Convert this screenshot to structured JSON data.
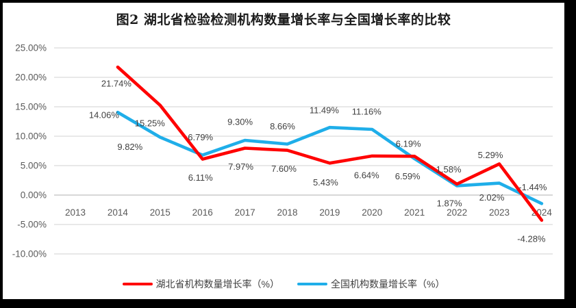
{
  "chart_data": {
    "type": "line",
    "title": "图2  湖北省检验检测机构数量增长率与全国增长率的比较",
    "categories": [
      "2013",
      "2014",
      "2015",
      "2016",
      "2017",
      "2018",
      "2019",
      "2020",
      "2021",
      "2022",
      "2023",
      "2024"
    ],
    "series": [
      {
        "name": "湖北省机构数量增长率（%）",
        "color": "#FF0000",
        "values": [
          null,
          21.74,
          15.25,
          6.11,
          7.97,
          7.6,
          5.43,
          6.64,
          6.59,
          1.87,
          5.29,
          -4.28
        ],
        "labels": [
          "",
          "21.74%",
          "15.25%",
          "6.11%",
          "7.97%",
          "7.60%",
          "5.43%",
          "6.64%",
          "6.59%",
          "1.87%",
          "5.29%",
          "-4.28%"
        ],
        "label_offsets": [
          null,
          [
            -2,
            24
          ],
          [
            -15,
            26
          ],
          [
            -3,
            27
          ],
          [
            -6,
            27
          ],
          [
            -5,
            27
          ],
          [
            -6,
            28
          ],
          [
            -8,
            28
          ],
          [
            -10,
            29
          ],
          [
            -11,
            28
          ],
          [
            -13,
            -13
          ],
          [
            -15,
            27
          ]
        ]
      },
      {
        "name": "全国机构数量增长率（%）",
        "color": "#1FAEE9",
        "values": [
          null,
          14.06,
          9.82,
          6.79,
          9.3,
          8.66,
          11.49,
          11.16,
          6.19,
          1.58,
          2.02,
          -1.44
        ],
        "labels": [
          "",
          "14.06%",
          "9.82%",
          "6.79%",
          "9.30%",
          "8.66%",
          "11.49%",
          "11.16%",
          "6.19%",
          "1.58%",
          "2.02%",
          "-1.44%"
        ],
        "label_offsets": [
          null,
          [
            -20,
            4
          ],
          [
            -44,
            14
          ],
          [
            -3,
            -26
          ],
          [
            -7,
            -27
          ],
          [
            -7,
            -26
          ],
          [
            -8,
            -25
          ],
          [
            -8,
            -26
          ],
          [
            -9,
            -22
          ],
          [
            -12,
            -24
          ],
          [
            -11,
            21
          ],
          [
            -13,
            -24
          ]
        ]
      }
    ],
    "ylim": [
      -10,
      25
    ],
    "ytick_step": 5,
    "ytick_labels": [
      "25.00%",
      "20.00%",
      "15.00%",
      "10.00%",
      "5.00%",
      "0.00%",
      "-5.00%",
      "-10.00%"
    ],
    "grid": true,
    "legend_position": "bottom"
  },
  "colors": {
    "frame_border": "#000000",
    "background": "#FFFFFF",
    "gridline": "#D9D9D9",
    "axis_line": "#BFBFBF",
    "tick_label": "#595959",
    "data_label": "#404040",
    "title_text": "#1A1A1A",
    "legend_text": "#404040"
  }
}
